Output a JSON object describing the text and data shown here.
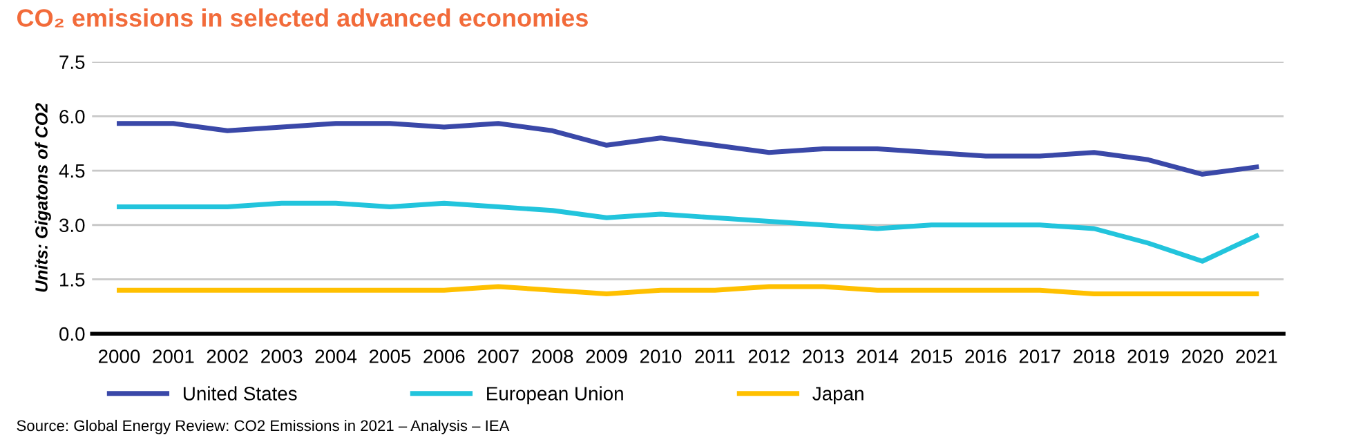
{
  "chart_data": {
    "type": "line",
    "title": "CO₂ emissions in selected advanced economies",
    "ylabel": "Units: Gigatons of CO2",
    "categories": [
      "2000",
      "2001",
      "2002",
      "2003",
      "2004",
      "2005",
      "2006",
      "2007",
      "2008",
      "2009",
      "2010",
      "2011",
      "2012",
      "2013",
      "2014",
      "2015",
      "2016",
      "2017",
      "2018",
      "2019",
      "2020",
      "2021"
    ],
    "series": [
      {
        "name": "United States",
        "color": "#3a48a8",
        "values": [
          5.8,
          5.8,
          5.6,
          5.7,
          5.8,
          5.8,
          5.7,
          5.8,
          5.6,
          5.2,
          5.4,
          5.2,
          5.0,
          5.1,
          5.1,
          5.0,
          4.9,
          4.9,
          5.0,
          4.8,
          4.4,
          4.6
        ]
      },
      {
        "name": "European Union",
        "color": "#22c4dc",
        "values": [
          3.5,
          3.5,
          3.5,
          3.6,
          3.6,
          3.5,
          3.6,
          3.5,
          3.4,
          3.2,
          3.3,
          3.2,
          3.1,
          3.0,
          2.9,
          3.0,
          3.0,
          3.0,
          2.9,
          2.5,
          2.0,
          2.7
        ]
      },
      {
        "name": "Japan",
        "color": "#ffc000",
        "values": [
          1.2,
          1.2,
          1.2,
          1.2,
          1.2,
          1.2,
          1.2,
          1.3,
          1.2,
          1.1,
          1.2,
          1.2,
          1.3,
          1.3,
          1.2,
          1.2,
          1.2,
          1.2,
          1.1,
          1.1,
          1.1,
          1.1
        ]
      }
    ],
    "ylim": [
      0,
      7.5
    ],
    "yticks": [
      {
        "value": 0,
        "label": "0.0"
      },
      {
        "value": 1.5,
        "label": "1.5"
      },
      {
        "value": 3,
        "label": "3.0"
      },
      {
        "value": 4.5,
        "label": "4.5"
      },
      {
        "value": 6,
        "label": "6.0"
      },
      {
        "value": 7.5,
        "label": "7.5"
      }
    ],
    "grid": "y",
    "legend": "bottom",
    "marker": "none",
    "line_style": "solid",
    "annotations": [
      "Source: Global Energy Review: CO2 Emissions in 2021 – Analysis – IEA"
    ]
  }
}
